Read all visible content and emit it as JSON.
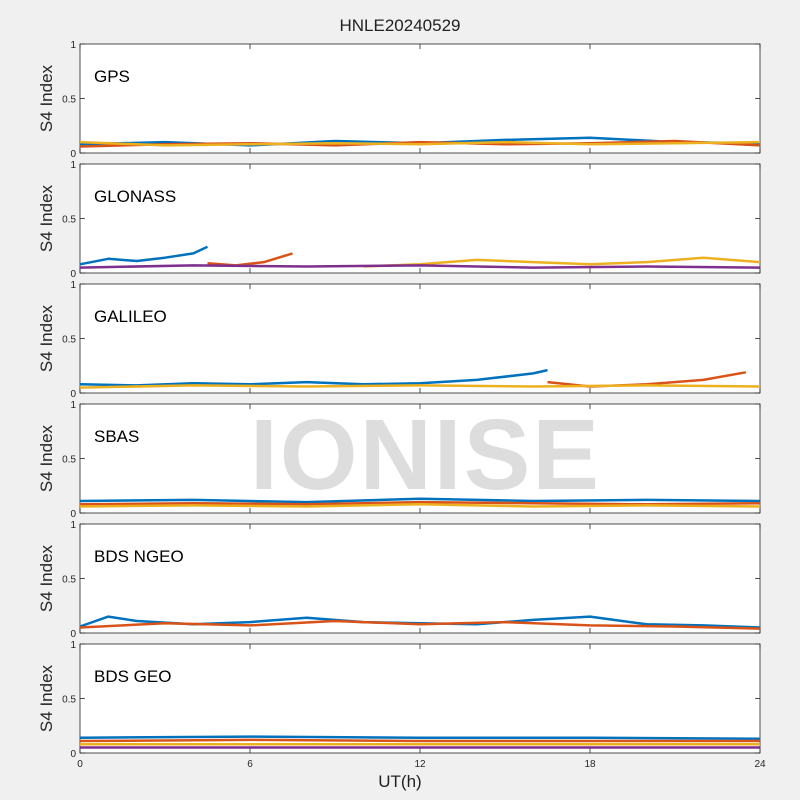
{
  "figure": {
    "title": "HNLE20240529",
    "watermark": "IONISE",
    "xlabel": "UT(h)"
  },
  "chart_data": {
    "type": "line",
    "title": "HNLE20240529",
    "xlabel": "UT(h)",
    "ylabel": "S4 Index",
    "xlim": [
      0,
      24
    ],
    "ylim": [
      0,
      1
    ],
    "xticks": [
      0,
      6,
      12,
      18,
      24
    ],
    "yticks": [
      0,
      0.5,
      1
    ],
    "grid": false,
    "series_colors": [
      "#0072bd",
      "#d95319",
      "#edb120",
      "#7e2f8e",
      "#77ac30",
      "#4dbeee",
      "#a2142f"
    ],
    "panels": [
      {
        "label": "GPS",
        "series": [
          {
            "x": [
              0,
              3,
              6,
              9,
              12,
              15,
              18,
              21,
              24
            ],
            "y": [
              0.08,
              0.1,
              0.07,
              0.11,
              0.09,
              0.12,
              0.14,
              0.1,
              0.09
            ]
          },
          {
            "x": [
              0,
              3,
              6,
              9,
              12,
              15,
              18,
              21,
              24
            ],
            "y": [
              0.06,
              0.08,
              0.09,
              0.07,
              0.1,
              0.08,
              0.09,
              0.11,
              0.07
            ]
          },
          {
            "x": [
              0,
              3,
              6,
              9,
              12,
              15,
              18,
              21,
              24
            ],
            "y": [
              0.1,
              0.07,
              0.08,
              0.09,
              0.08,
              0.1,
              0.08,
              0.09,
              0.1
            ]
          }
        ]
      },
      {
        "label": "GLONASS",
        "series": [
          {
            "x": [
              0,
              1,
              2,
              3,
              4,
              4.5
            ],
            "y": [
              0.08,
              0.13,
              0.11,
              0.14,
              0.18,
              0.24
            ]
          },
          {
            "x": [
              4.5,
              5.5,
              6.5,
              7.5
            ],
            "y": [
              0.09,
              0.07,
              0.1,
              0.18
            ]
          },
          {
            "x": [
              10,
              12,
              14,
              16,
              18,
              20,
              22,
              24
            ],
            "y": [
              0.06,
              0.08,
              0.12,
              0.1,
              0.08,
              0.1,
              0.14,
              0.1
            ]
          },
          {
            "x": [
              0,
              4,
              8,
              12,
              16,
              20,
              24
            ],
            "y": [
              0.05,
              0.07,
              0.06,
              0.07,
              0.05,
              0.06,
              0.05
            ]
          }
        ]
      },
      {
        "label": "GALILEO",
        "series": [
          {
            "x": [
              0,
              2,
              4,
              6,
              8,
              10,
              12,
              14,
              16,
              16.5
            ],
            "y": [
              0.08,
              0.07,
              0.09,
              0.08,
              0.1,
              0.08,
              0.09,
              0.12,
              0.18,
              0.21
            ]
          },
          {
            "x": [
              16.5,
              18,
              20,
              22,
              23.5
            ],
            "y": [
              0.1,
              0.06,
              0.08,
              0.12,
              0.19
            ]
          },
          {
            "x": [
              0,
              4,
              8,
              12,
              16,
              20,
              24
            ],
            "y": [
              0.05,
              0.07,
              0.06,
              0.07,
              0.06,
              0.07,
              0.06
            ]
          }
        ]
      },
      {
        "label": "SBAS",
        "series": [
          {
            "x": [
              0,
              4,
              8,
              12,
              16,
              20,
              24
            ],
            "y": [
              0.11,
              0.12,
              0.1,
              0.13,
              0.11,
              0.12,
              0.11
            ]
          },
          {
            "x": [
              0,
              4,
              8,
              12,
              16,
              20,
              24
            ],
            "y": [
              0.08,
              0.09,
              0.08,
              0.1,
              0.09,
              0.08,
              0.09
            ]
          },
          {
            "x": [
              0,
              4,
              8,
              12,
              16,
              20,
              24
            ],
            "y": [
              0.06,
              0.07,
              0.06,
              0.08,
              0.06,
              0.07,
              0.06
            ]
          }
        ]
      },
      {
        "label": "BDS NGEO",
        "series": [
          {
            "x": [
              0,
              1,
              2,
              4,
              6,
              8,
              10,
              12,
              14,
              16,
              18,
              20,
              22,
              24
            ],
            "y": [
              0.06,
              0.15,
              0.11,
              0.08,
              0.1,
              0.14,
              0.1,
              0.09,
              0.08,
              0.12,
              0.15,
              0.08,
              0.07,
              0.05
            ]
          },
          {
            "x": [
              0,
              3,
              6,
              9,
              12,
              15,
              18,
              21,
              24
            ],
            "y": [
              0.05,
              0.09,
              0.07,
              0.11,
              0.08,
              0.1,
              0.07,
              0.06,
              0.04
            ]
          }
        ]
      },
      {
        "label": "BDS GEO",
        "series": [
          {
            "x": [
              0,
              6,
              12,
              18,
              24
            ],
            "y": [
              0.14,
              0.15,
              0.14,
              0.14,
              0.13
            ]
          },
          {
            "x": [
              0,
              6,
              12,
              18,
              24
            ],
            "y": [
              0.11,
              0.12,
              0.11,
              0.11,
              0.11
            ]
          },
          {
            "x": [
              0,
              6,
              12,
              18,
              24
            ],
            "y": [
              0.08,
              0.08,
              0.08,
              0.08,
              0.08
            ]
          },
          {
            "x": [
              0,
              6,
              12,
              18,
              24
            ],
            "y": [
              0.05,
              0.05,
              0.05,
              0.05,
              0.05
            ]
          }
        ]
      }
    ]
  }
}
